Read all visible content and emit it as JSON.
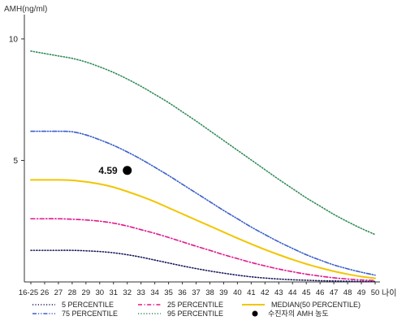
{
  "chart_data": {
    "type": "line",
    "title": "",
    "ylabel": "AMH(ng/ml)",
    "xlabel": "나이",
    "ylim": [
      0,
      11
    ],
    "yticks": [
      5,
      10
    ],
    "x_categories": [
      "16-25",
      "26",
      "27",
      "28",
      "29",
      "30",
      "31",
      "32",
      "33",
      "34",
      "35",
      "36",
      "37",
      "38",
      "39",
      "40",
      "41",
      "42",
      "43",
      "44",
      "45",
      "46",
      "47",
      "48",
      "49",
      "50"
    ],
    "x_values": [
      25,
      26,
      27,
      28,
      29,
      30,
      31,
      32,
      33,
      34,
      35,
      36,
      37,
      38,
      39,
      40,
      41,
      42,
      43,
      44,
      45,
      46,
      47,
      48,
      49,
      50
    ],
    "series": [
      {
        "name": "5 PERCENTILE",
        "color": "#1a1a5e",
        "style": "dotted",
        "values": [
          1.3,
          1.3,
          1.3,
          1.3,
          1.28,
          1.25,
          1.2,
          1.12,
          1.02,
          0.9,
          0.78,
          0.66,
          0.55,
          0.45,
          0.36,
          0.28,
          0.21,
          0.16,
          0.12,
          0.09,
          0.07,
          0.05,
          0.04,
          0.03,
          0.02,
          0.02
        ]
      },
      {
        "name": "25 PERCENTILE",
        "color": "#e0198c",
        "style": "dashdot",
        "values": [
          2.6,
          2.6,
          2.6,
          2.58,
          2.55,
          2.5,
          2.42,
          2.3,
          2.15,
          2.0,
          1.83,
          1.65,
          1.47,
          1.3,
          1.12,
          0.96,
          0.8,
          0.66,
          0.53,
          0.42,
          0.32,
          0.24,
          0.17,
          0.12,
          0.08,
          0.06
        ]
      },
      {
        "name": "MEDIAN(50 PERCENTILE)",
        "color": "#f2c500",
        "style": "solid",
        "values": [
          4.2,
          4.2,
          4.2,
          4.18,
          4.12,
          4.03,
          3.9,
          3.72,
          3.52,
          3.3,
          3.05,
          2.8,
          2.55,
          2.3,
          2.05,
          1.8,
          1.56,
          1.33,
          1.12,
          0.92,
          0.74,
          0.58,
          0.44,
          0.32,
          0.22,
          0.15
        ]
      },
      {
        "name": "75 PERCENTILE",
        "color": "#3a5fcd",
        "style": "dashdotdot",
        "values": [
          6.2,
          6.2,
          6.2,
          6.18,
          6.05,
          5.85,
          5.62,
          5.35,
          5.05,
          4.72,
          4.38,
          4.02,
          3.66,
          3.3,
          2.94,
          2.6,
          2.26,
          1.95,
          1.65,
          1.38,
          1.12,
          0.9,
          0.7,
          0.54,
          0.4,
          0.28
        ]
      },
      {
        "name": "95 PERCENTILE",
        "color": "#2e8b57",
        "style": "dotted",
        "values": [
          9.5,
          9.4,
          9.3,
          9.2,
          9.05,
          8.85,
          8.62,
          8.35,
          8.05,
          7.72,
          7.38,
          7.0,
          6.62,
          6.22,
          5.82,
          5.42,
          5.02,
          4.62,
          4.22,
          3.84,
          3.46,
          3.12,
          2.78,
          2.48,
          2.2,
          1.95
        ]
      }
    ],
    "marker": {
      "name": "수진자의 AMH 농도",
      "x": 32,
      "y": 4.59,
      "label": "4.59",
      "color": "#000000"
    },
    "legend_position": "bottom",
    "grid": false
  }
}
